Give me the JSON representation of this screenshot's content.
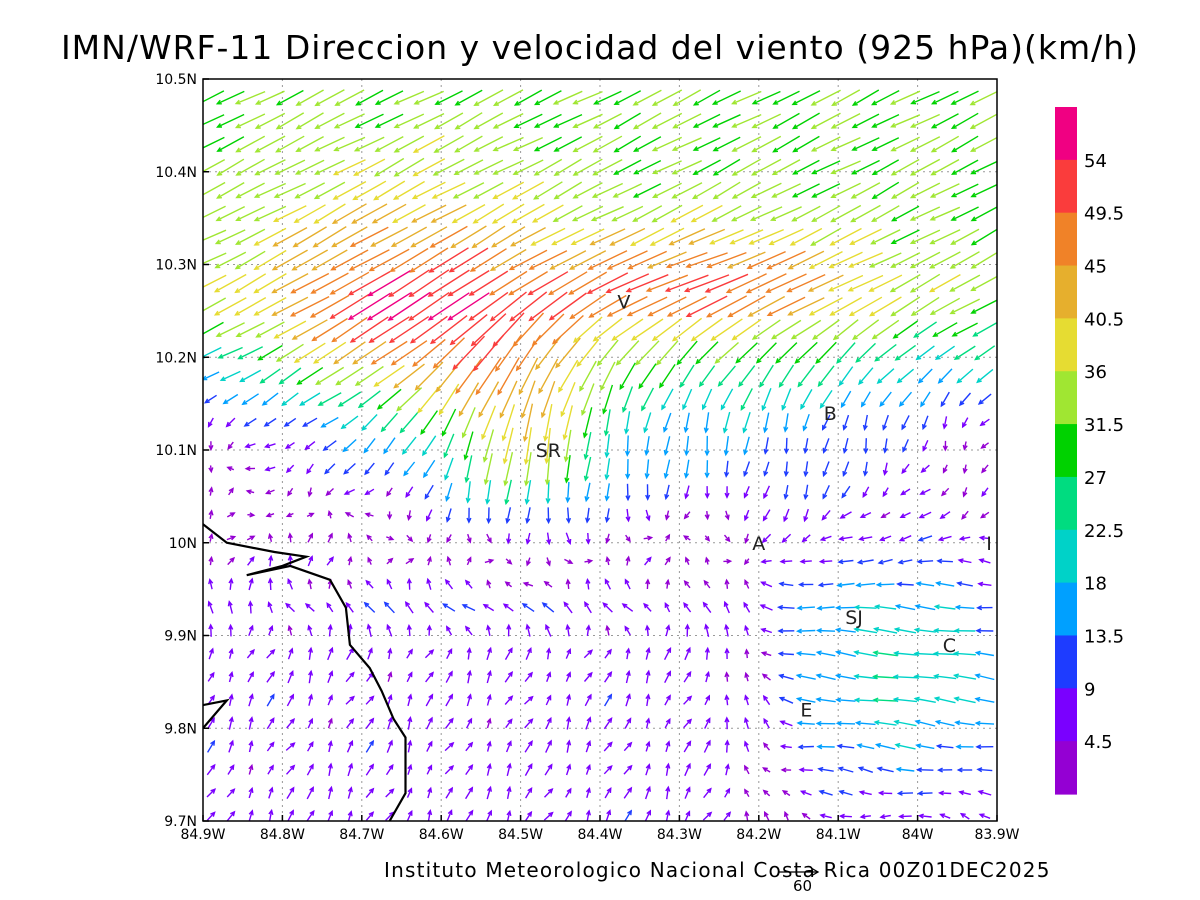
{
  "title": "IMN/WRF-11 Direccion y velocidad del viento (925 hPa)(km/h)",
  "footer": "Instituto Meteorologico Nacional Costa Rica 00Z01DEC2025",
  "reference_vector": {
    "label": "60",
    "speed": 60
  },
  "chart_data": {
    "type": "vector-field",
    "xlim": [
      -84.9,
      -83.9
    ],
    "ylim": [
      9.7,
      10.5
    ],
    "x_ticks": [
      -84.9,
      -84.8,
      -84.7,
      -84.6,
      -84.5,
      -84.4,
      -84.3,
      -84.2,
      -84.1,
      -84.0,
      -83.9
    ],
    "x_tick_labels": [
      "84.9W",
      "84.8W",
      "84.7W",
      "84.6W",
      "84.5W",
      "84.4W",
      "84.3W",
      "84.2W",
      "84.1W",
      "84W",
      "83.9W"
    ],
    "y_ticks": [
      9.7,
      9.8,
      9.9,
      10.0,
      10.1,
      10.2,
      10.3,
      10.4,
      10.5
    ],
    "y_tick_labels": [
      "9.7N",
      "9.8N",
      "9.9N",
      "10N",
      "10.1N",
      "10.2N",
      "10.3N",
      "10.4N",
      "10.5N"
    ],
    "grid": true,
    "legend_position": "right",
    "colorbar": {
      "levels": [
        "4.5",
        "9",
        "13.5",
        "18",
        "22.5",
        "27",
        "31.5",
        "36",
        "40.5",
        "45",
        "49.5",
        "54"
      ],
      "colors": [
        "#9400d3",
        "#7a00ff",
        "#1e3cff",
        "#00a0ff",
        "#00d2c8",
        "#00dc80",
        "#00d200",
        "#a0e632",
        "#e6dc32",
        "#e6af2d",
        "#f08228",
        "#fa3c3c",
        "#f00082"
      ]
    },
    "stations": [
      {
        "name": "V",
        "lon": -84.37,
        "lat": 10.26
      },
      {
        "name": "SR",
        "lon": -84.465,
        "lat": 10.1
      },
      {
        "name": "B",
        "lon": -84.11,
        "lat": 10.14
      },
      {
        "name": "A",
        "lon": -84.2,
        "lat": 10.0
      },
      {
        "name": "I",
        "lon": -83.91,
        "lat": 10.0
      },
      {
        "name": "SJ",
        "lon": -84.08,
        "lat": 9.92
      },
      {
        "name": "C",
        "lon": -83.96,
        "lat": 9.89
      },
      {
        "name": "E",
        "lon": -84.14,
        "lat": 9.82
      }
    ],
    "coastline": [
      [
        -84.9,
        10.02
      ],
      [
        -84.87,
        10.0
      ],
      [
        -84.81,
        9.99
      ],
      [
        -84.77,
        9.985
      ],
      [
        -84.8,
        9.975
      ],
      [
        -84.845,
        9.965
      ],
      [
        -84.79,
        9.975
      ],
      [
        -84.74,
        9.96
      ],
      [
        -84.72,
        9.93
      ],
      [
        -84.715,
        9.89
      ],
      [
        -84.69,
        9.865
      ],
      [
        -84.675,
        9.84
      ],
      [
        -84.66,
        9.81
      ],
      [
        -84.645,
        9.79
      ],
      [
        -84.645,
        9.73
      ],
      [
        -84.665,
        9.7
      ]
    ],
    "coastline2": [
      [
        -84.9,
        9.825
      ],
      [
        -84.87,
        9.83
      ],
      [
        -84.9,
        9.8
      ]
    ]
  }
}
